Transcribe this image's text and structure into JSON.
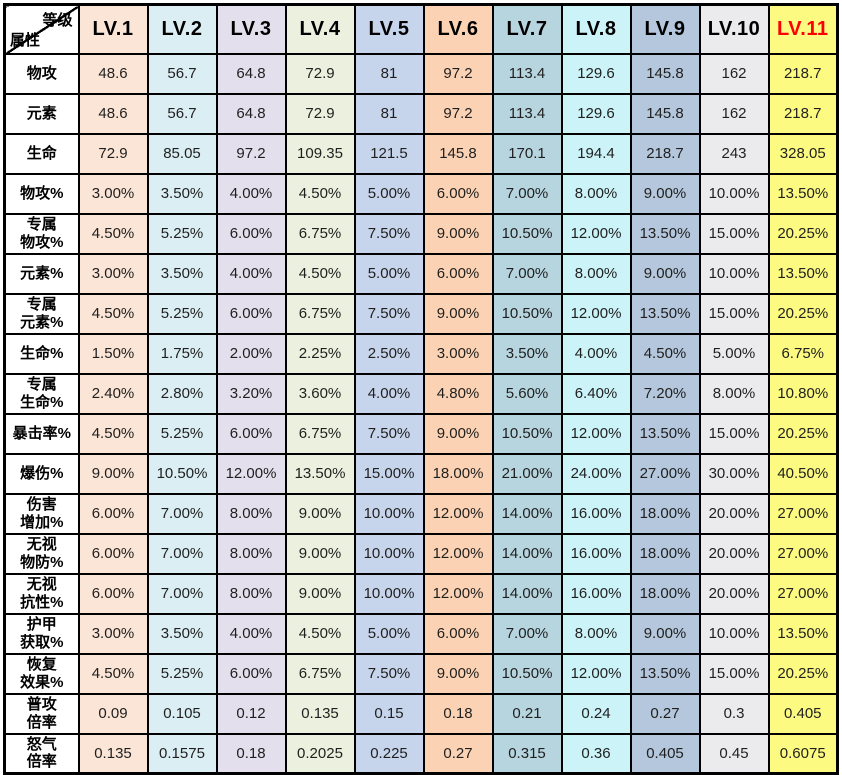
{
  "table": {
    "corner": {
      "top_label": "等级",
      "bottom_label": "属性"
    },
    "columns": [
      {
        "label": "LV.1",
        "fill": "#FBE5D6",
        "header_text": "#000000"
      },
      {
        "label": "LV.2",
        "fill": "#DAEEF3",
        "header_text": "#000000"
      },
      {
        "label": "LV.3",
        "fill": "#E4DFEC",
        "header_text": "#000000"
      },
      {
        "label": "LV.4",
        "fill": "#EBF1DE",
        "header_text": "#000000"
      },
      {
        "label": "LV.5",
        "fill": "#C7D5EC",
        "header_text": "#000000"
      },
      {
        "label": "LV.6",
        "fill": "#FBD3B4",
        "header_text": "#000000"
      },
      {
        "label": "LV.7",
        "fill": "#B7D5DF",
        "header_text": "#000000"
      },
      {
        "label": "LV.8",
        "fill": "#CBF3F8",
        "header_text": "#000000"
      },
      {
        "label": "LV.9",
        "fill": "#B5C7DC",
        "header_text": "#000000"
      },
      {
        "label": "LV.10",
        "fill": "#EBEBEE",
        "header_text": "#000000"
      },
      {
        "label": "LV.11",
        "fill": "#FCFA80",
        "header_text": "#FF0000"
      }
    ]
  },
  "chart_data": {
    "type": "table",
    "columns": [
      "LV.1",
      "LV.2",
      "LV.3",
      "LV.4",
      "LV.5",
      "LV.6",
      "LV.7",
      "LV.8",
      "LV.9",
      "LV.10",
      "LV.11"
    ],
    "corner": {
      "top": "等级",
      "bottom": "属性"
    },
    "rows": [
      {
        "label": "物攻",
        "lines": [
          "物攻"
        ],
        "values": [
          "48.6",
          "56.7",
          "64.8",
          "72.9",
          "81",
          "97.2",
          "113.4",
          "129.6",
          "145.8",
          "162",
          "218.7"
        ]
      },
      {
        "label": "元素",
        "lines": [
          "元素"
        ],
        "values": [
          "48.6",
          "56.7",
          "64.8",
          "72.9",
          "81",
          "97.2",
          "113.4",
          "129.6",
          "145.8",
          "162",
          "218.7"
        ]
      },
      {
        "label": "生命",
        "lines": [
          "生命"
        ],
        "values": [
          "72.9",
          "85.05",
          "97.2",
          "109.35",
          "121.5",
          "145.8",
          "170.1",
          "194.4",
          "218.7",
          "243",
          "328.05"
        ]
      },
      {
        "label": "物攻%",
        "lines": [
          "物攻%"
        ],
        "values": [
          "3.00%",
          "3.50%",
          "4.00%",
          "4.50%",
          "5.00%",
          "6.00%",
          "7.00%",
          "8.00%",
          "9.00%",
          "10.00%",
          "13.50%"
        ]
      },
      {
        "label": "专属物攻%",
        "lines": [
          "专属",
          "物攻%"
        ],
        "values": [
          "4.50%",
          "5.25%",
          "6.00%",
          "6.75%",
          "7.50%",
          "9.00%",
          "10.50%",
          "12.00%",
          "13.50%",
          "15.00%",
          "20.25%"
        ]
      },
      {
        "label": "元素%",
        "lines": [
          "元素%"
        ],
        "values": [
          "3.00%",
          "3.50%",
          "4.00%",
          "4.50%",
          "5.00%",
          "6.00%",
          "7.00%",
          "8.00%",
          "9.00%",
          "10.00%",
          "13.50%"
        ]
      },
      {
        "label": "专属元素%",
        "lines": [
          "专属",
          "元素%"
        ],
        "values": [
          "4.50%",
          "5.25%",
          "6.00%",
          "6.75%",
          "7.50%",
          "9.00%",
          "10.50%",
          "12.00%",
          "13.50%",
          "15.00%",
          "20.25%"
        ]
      },
      {
        "label": "生命%",
        "lines": [
          "生命%"
        ],
        "values": [
          "1.50%",
          "1.75%",
          "2.00%",
          "2.25%",
          "2.50%",
          "3.00%",
          "3.50%",
          "4.00%",
          "4.50%",
          "5.00%",
          "6.75%"
        ]
      },
      {
        "label": "专属生命%",
        "lines": [
          "专属",
          "生命%"
        ],
        "values": [
          "2.40%",
          "2.80%",
          "3.20%",
          "3.60%",
          "4.00%",
          "4.80%",
          "5.60%",
          "6.40%",
          "7.20%",
          "8.00%",
          "10.80%"
        ]
      },
      {
        "label": "暴击率%",
        "lines": [
          "暴击率%"
        ],
        "values": [
          "4.50%",
          "5.25%",
          "6.00%",
          "6.75%",
          "7.50%",
          "9.00%",
          "10.50%",
          "12.00%",
          "13.50%",
          "15.00%",
          "20.25%"
        ]
      },
      {
        "label": "爆伤%",
        "lines": [
          "爆伤%"
        ],
        "values": [
          "9.00%",
          "10.50%",
          "12.00%",
          "13.50%",
          "15.00%",
          "18.00%",
          "21.00%",
          "24.00%",
          "27.00%",
          "30.00%",
          "40.50%"
        ]
      },
      {
        "label": "伤害增加%",
        "lines": [
          "伤害",
          "增加%"
        ],
        "values": [
          "6.00%",
          "7.00%",
          "8.00%",
          "9.00%",
          "10.00%",
          "12.00%",
          "14.00%",
          "16.00%",
          "18.00%",
          "20.00%",
          "27.00%"
        ]
      },
      {
        "label": "无视物防%",
        "lines": [
          "无视",
          "物防%"
        ],
        "values": [
          "6.00%",
          "7.00%",
          "8.00%",
          "9.00%",
          "10.00%",
          "12.00%",
          "14.00%",
          "16.00%",
          "18.00%",
          "20.00%",
          "27.00%"
        ]
      },
      {
        "label": "无视抗性%",
        "lines": [
          "无视",
          "抗性%"
        ],
        "values": [
          "6.00%",
          "7.00%",
          "8.00%",
          "9.00%",
          "10.00%",
          "12.00%",
          "14.00%",
          "16.00%",
          "18.00%",
          "20.00%",
          "27.00%"
        ]
      },
      {
        "label": "护甲获取%",
        "lines": [
          "护甲",
          "获取%"
        ],
        "values": [
          "3.00%",
          "3.50%",
          "4.00%",
          "4.50%",
          "5.00%",
          "6.00%",
          "7.00%",
          "8.00%",
          "9.00%",
          "10.00%",
          "13.50%"
        ]
      },
      {
        "label": "恢复效果%",
        "lines": [
          "恢复",
          "效果%"
        ],
        "values": [
          "4.50%",
          "5.25%",
          "6.00%",
          "6.75%",
          "7.50%",
          "9.00%",
          "10.50%",
          "12.00%",
          "13.50%",
          "15.00%",
          "20.25%"
        ]
      },
      {
        "label": "普攻倍率",
        "lines": [
          "普攻",
          "倍率"
        ],
        "values": [
          "0.09",
          "0.105",
          "0.12",
          "0.135",
          "0.15",
          "0.18",
          "0.21",
          "0.24",
          "0.27",
          "0.3",
          "0.405"
        ]
      },
      {
        "label": "怒气倍率",
        "lines": [
          "怒气",
          "倍率"
        ],
        "values": [
          "0.135",
          "0.1575",
          "0.18",
          "0.2025",
          "0.225",
          "0.27",
          "0.315",
          "0.36",
          "0.405",
          "0.45",
          "0.6075"
        ]
      }
    ]
  },
  "colors": {
    "border": "#000000",
    "label_column_fill": "#FFFFFF",
    "value_text": "#1F1F1F",
    "lv11_header_text": "#FF0000"
  }
}
